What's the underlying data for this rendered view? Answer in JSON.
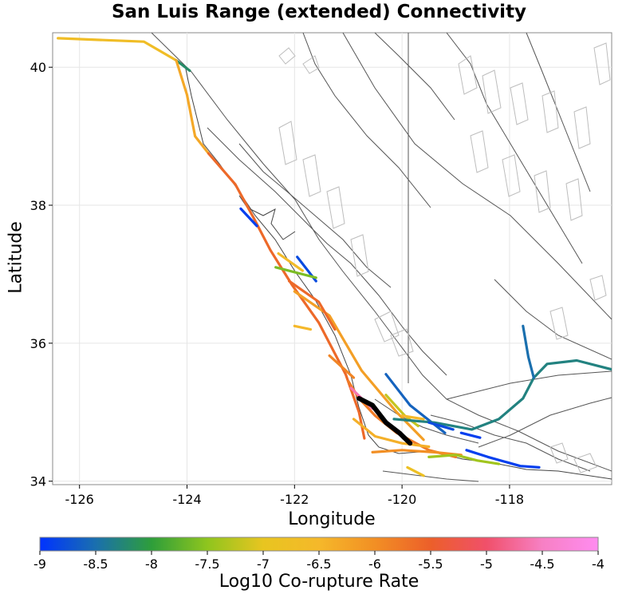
{
  "title": "San Luis Range (extended) Connectivity",
  "x_axis": {
    "label": "Longitude",
    "ticks": [
      "-126",
      "-124",
      "-122",
      "-120",
      "-118"
    ]
  },
  "y_axis": {
    "label": "Latitude",
    "ticks": [
      "34",
      "36",
      "38",
      "40"
    ]
  },
  "colorbar": {
    "label": "Log10 Co-rupture Rate",
    "ticks": [
      "-9",
      "-8.5",
      "-8",
      "-7.5",
      "-7",
      "-6.5",
      "-6",
      "-5.5",
      "-5",
      "-4.5",
      "-4"
    ],
    "colors": [
      "#0033ff",
      "#1a6fae",
      "#2e9e3a",
      "#8fc51e",
      "#e8c520",
      "#f5b82a",
      "#f28f24",
      "#ec5f2a",
      "#f0506a",
      "#f780c4",
      "#ff8cf0"
    ]
  },
  "colors": {
    "target_section": "#000000",
    "fault_trace": "#555555",
    "fault_dip_box": "#bdbdbd",
    "coast": "#444444",
    "grid": "#e6e6e6"
  },
  "chart_data": {
    "type": "map",
    "xlim": [
      -126.5,
      -116.1
    ],
    "ylim": [
      33.95,
      40.5
    ],
    "grid": true,
    "target_section": {
      "name": "San Luis Range (extended)",
      "trace": [
        [
          -120.8,
          35.2
        ],
        [
          -120.55,
          35.1
        ],
        [
          -120.3,
          34.85
        ],
        [
          -120.05,
          34.7
        ],
        [
          -119.85,
          34.55
        ]
      ]
    },
    "connected_sections": [
      {
        "rate": -6.7,
        "trace": [
          [
            -126.4,
            40.42
          ],
          [
            -124.8,
            40.37
          ],
          [
            -124.2,
            40.1
          ]
        ]
      },
      {
        "rate": -8.2,
        "trace": [
          [
            -124.2,
            40.1
          ],
          [
            -123.95,
            39.95
          ]
        ]
      },
      {
        "rate": -6.3,
        "trace": [
          [
            -124.2,
            40.1
          ],
          [
            -124.0,
            39.6
          ],
          [
            -123.85,
            39.0
          ],
          [
            -123.6,
            38.75
          ]
        ]
      },
      {
        "rate": -5.6,
        "trace": [
          [
            -123.6,
            38.75
          ],
          [
            -123.1,
            38.3
          ],
          [
            -122.75,
            37.8
          ],
          [
            -122.45,
            37.35
          ],
          [
            -122.05,
            36.85
          ],
          [
            -121.55,
            36.3
          ],
          [
            -121.05,
            35.55
          ],
          [
            -120.8,
            35.0
          ],
          [
            -120.7,
            34.62
          ]
        ]
      },
      {
        "rate": -8.9,
        "trace": [
          [
            -123.0,
            37.95
          ],
          [
            -122.7,
            37.7
          ]
        ]
      },
      {
        "rate": -6.6,
        "trace": [
          [
            -122.3,
            37.3
          ],
          [
            -121.85,
            37.05
          ]
        ]
      },
      {
        "rate": -8.8,
        "trace": [
          [
            -121.95,
            37.25
          ],
          [
            -121.6,
            36.9
          ]
        ]
      },
      {
        "rate": -7.6,
        "trace": [
          [
            -122.35,
            37.1
          ],
          [
            -121.6,
            36.95
          ]
        ]
      },
      {
        "rate": -6.2,
        "trace": [
          [
            -122.0,
            36.75
          ],
          [
            -121.35,
            36.4
          ],
          [
            -120.75,
            35.6
          ],
          [
            -120.1,
            35.0
          ],
          [
            -119.6,
            34.6
          ]
        ]
      },
      {
        "rate": -6.5,
        "trace": [
          [
            -122.0,
            36.25
          ],
          [
            -121.7,
            36.2
          ]
        ]
      },
      {
        "rate": -5.6,
        "trace": [
          [
            -122.1,
            36.9
          ],
          [
            -121.55,
            36.6
          ],
          [
            -121.25,
            36.2
          ]
        ]
      },
      {
        "rate": -5.8,
        "trace": [
          [
            -121.0,
            35.45
          ],
          [
            -120.8,
            35.2
          ],
          [
            -120.5,
            34.95
          ],
          [
            -120.1,
            34.7
          ],
          [
            -119.5,
            34.45
          ],
          [
            -119.0,
            34.35
          ]
        ]
      },
      {
        "rate": -4.6,
        "trace": [
          [
            -120.95,
            35.35
          ],
          [
            -120.75,
            35.2
          ],
          [
            -120.55,
            35.05
          ]
        ]
      },
      {
        "rate": -8.6,
        "trace": [
          [
            -120.3,
            35.55
          ],
          [
            -119.85,
            35.1
          ],
          [
            -119.2,
            34.7
          ]
        ]
      },
      {
        "rate": -7.2,
        "trace": [
          [
            -120.3,
            35.25
          ],
          [
            -119.95,
            34.95
          ],
          [
            -119.7,
            34.8
          ]
        ]
      },
      {
        "rate": -8.3,
        "trace": [
          [
            -120.15,
            34.9
          ],
          [
            -119.4,
            34.85
          ],
          [
            -118.7,
            34.75
          ],
          [
            -118.2,
            34.9
          ],
          [
            -117.75,
            35.2
          ],
          [
            -117.55,
            35.5
          ],
          [
            -117.3,
            35.7
          ],
          [
            -116.75,
            35.75
          ],
          [
            -116.1,
            35.62
          ]
        ]
      },
      {
        "rate": -8.5,
        "trace": [
          [
            -117.75,
            36.25
          ],
          [
            -117.65,
            35.8
          ],
          [
            -117.55,
            35.5
          ]
        ]
      },
      {
        "rate": -8.8,
        "trace": [
          [
            -119.5,
            34.85
          ],
          [
            -119.05,
            34.75
          ]
        ]
      },
      {
        "rate": -8.9,
        "trace": [
          [
            -118.9,
            34.7
          ],
          [
            -118.55,
            34.63
          ]
        ]
      },
      {
        "rate": -6.4,
        "trace": [
          [
            -120.9,
            34.9
          ],
          [
            -120.5,
            34.65
          ],
          [
            -120.0,
            34.55
          ],
          [
            -119.5,
            34.5
          ]
        ]
      },
      {
        "rate": -6.0,
        "trace": [
          [
            -120.55,
            34.42
          ],
          [
            -120.0,
            34.45
          ],
          [
            -119.4,
            34.42
          ],
          [
            -118.9,
            34.38
          ]
        ]
      },
      {
        "rate": -7.4,
        "trace": [
          [
            -119.5,
            34.35
          ],
          [
            -119.0,
            34.38
          ],
          [
            -118.6,
            34.3
          ],
          [
            -118.2,
            34.25
          ]
        ]
      },
      {
        "rate": -8.9,
        "trace": [
          [
            -118.8,
            34.45
          ],
          [
            -118.4,
            34.35
          ],
          [
            -117.8,
            34.22
          ],
          [
            -117.45,
            34.2
          ]
        ]
      },
      {
        "rate": -6.8,
        "trace": [
          [
            -119.9,
            34.2
          ],
          [
            -119.6,
            34.08
          ]
        ]
      },
      {
        "rate": -6.5,
        "trace": [
          [
            -120.0,
            34.95
          ],
          [
            -119.6,
            34.9
          ]
        ]
      },
      {
        "rate": -5.9,
        "trace": [
          [
            -121.35,
            35.82
          ],
          [
            -120.9,
            35.5
          ]
        ]
      }
    ]
  }
}
